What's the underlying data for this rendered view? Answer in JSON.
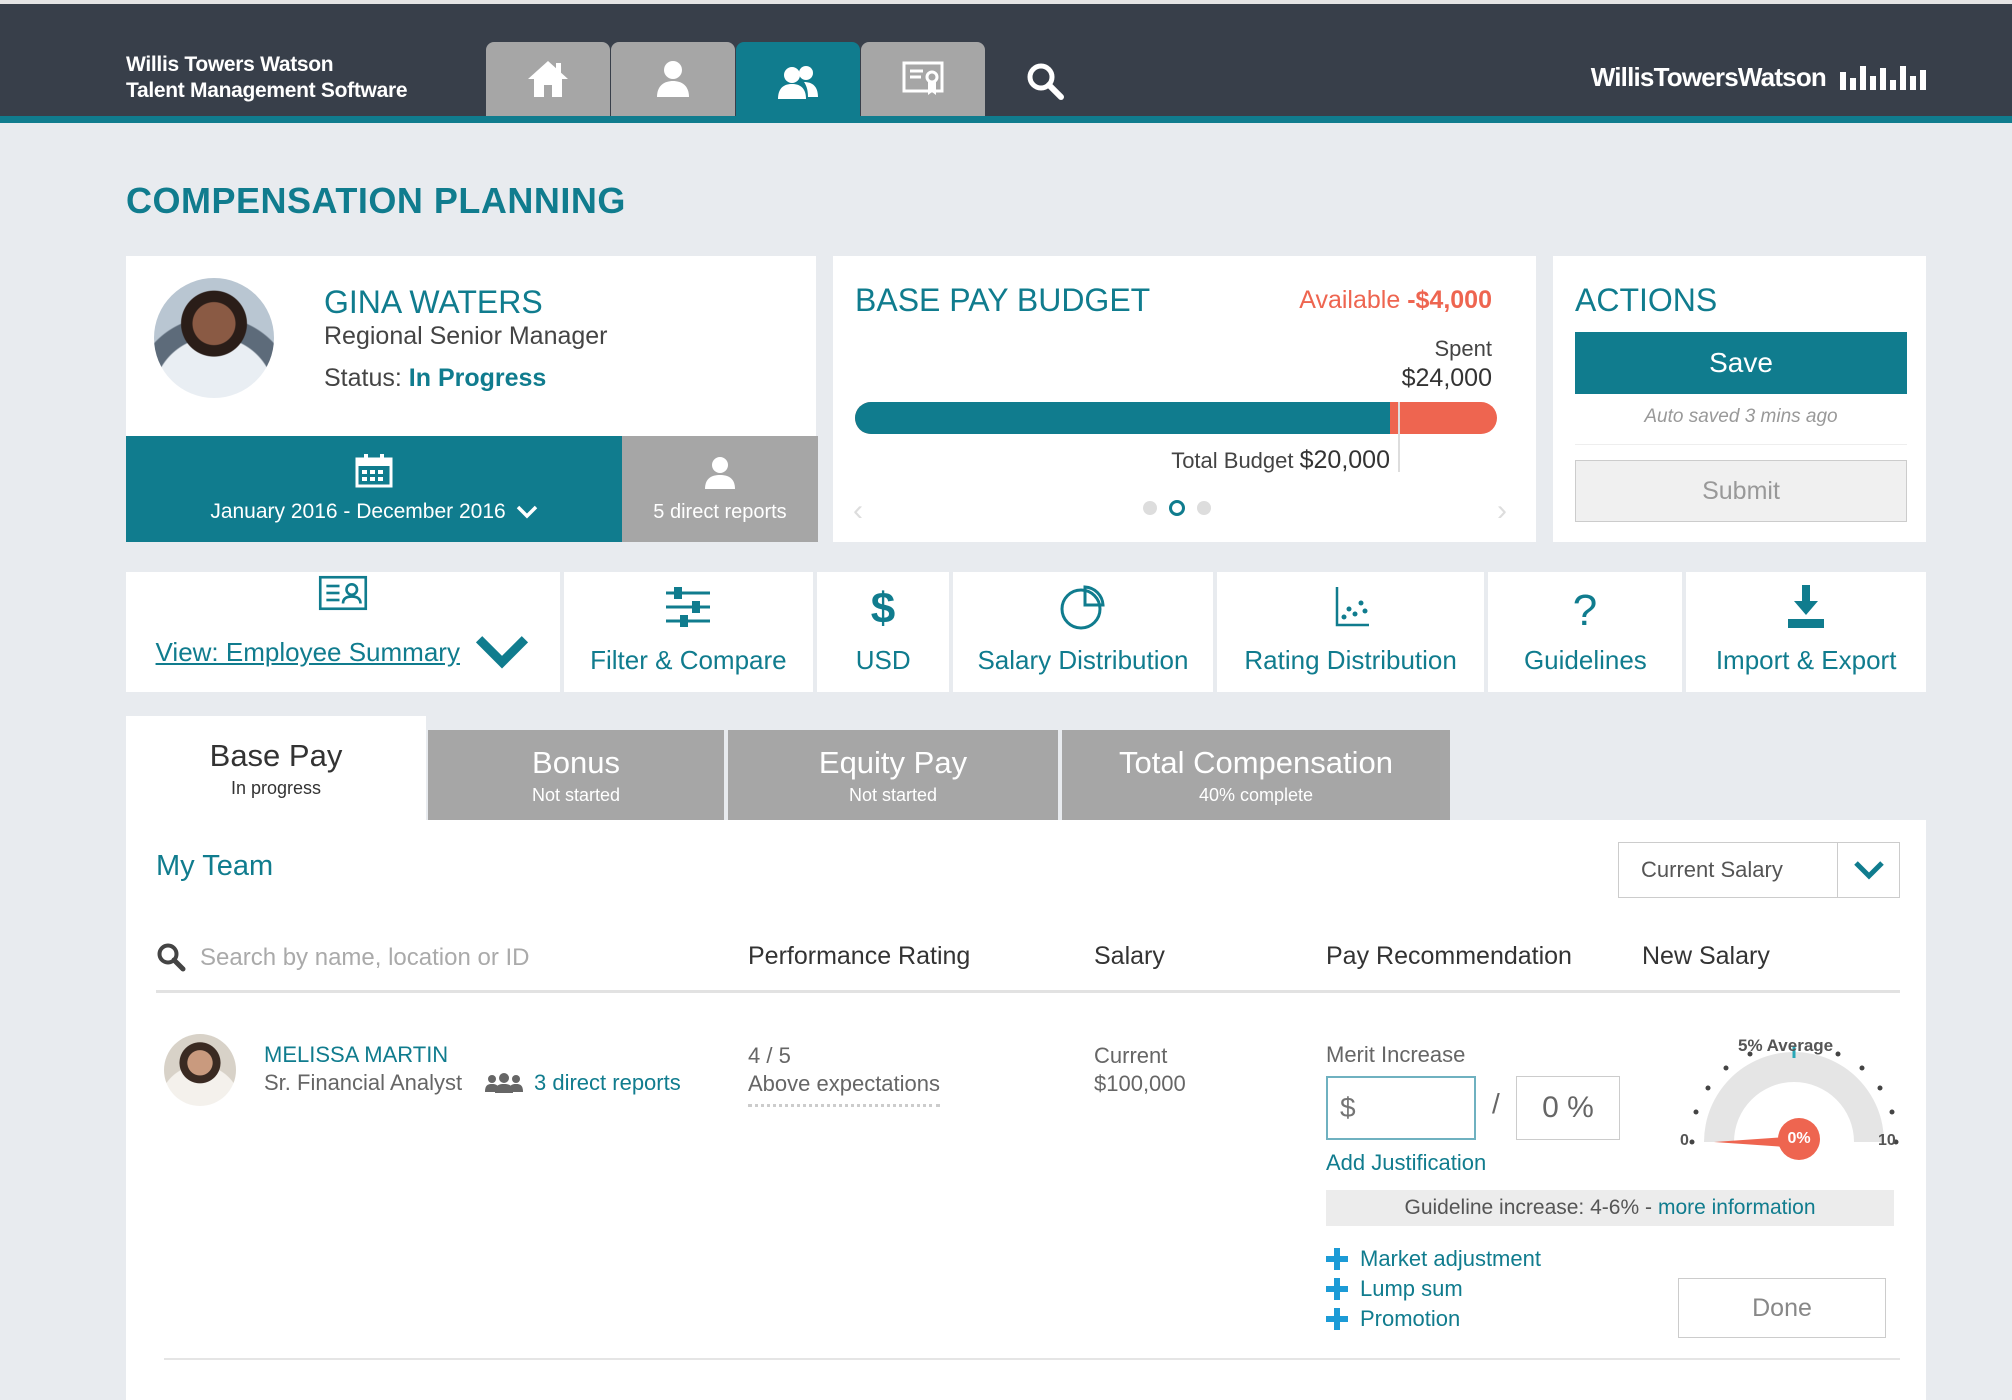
{
  "header": {
    "brand_line1": "Willis Towers Watson",
    "brand_line2": "Talent Management Software",
    "logo_text": "WillisTowersWatson",
    "nav": [
      {
        "icon": "home-icon"
      },
      {
        "icon": "user-icon"
      },
      {
        "icon": "team-icon",
        "active": true
      },
      {
        "icon": "certificate-icon"
      },
      {
        "icon": "search-icon"
      }
    ]
  },
  "page": {
    "title": "COMPENSATION PLANNING"
  },
  "profile": {
    "name": "GINA WATERS",
    "role": "Regional Senior Manager",
    "status_label": "Status:",
    "status_value": "In Progress",
    "period": "January 2016 - December 2016",
    "reports": "5 direct reports"
  },
  "budget": {
    "title": "BASE PAY BUDGET",
    "available_label": "Available",
    "available_value": "-$4,000",
    "spent_label": "Spent",
    "spent_value": "$24,000",
    "total_label": "Total Budget",
    "total_value": "$20,000",
    "fill_fraction": 0.833,
    "slides": 3,
    "active_slide": 2
  },
  "actions": {
    "title": "ACTIONS",
    "save": "Save",
    "autosave": "Auto saved 3 mins ago",
    "submit": "Submit"
  },
  "toolbar": {
    "view": "View: Employee Summary",
    "filter": "Filter & Compare",
    "currency": "USD",
    "salary_dist": "Salary Distribution",
    "rating_dist": "Rating Distribution",
    "guidelines": "Guidelines",
    "import_export": "Import & Export"
  },
  "tabs": [
    {
      "label": "Base Pay",
      "status": "In progress",
      "active": true
    },
    {
      "label": "Bonus",
      "status": "Not started"
    },
    {
      "label": "Equity Pay",
      "status": "Not started"
    },
    {
      "label": "Total Compensation",
      "status": "40% complete"
    }
  ],
  "team": {
    "title": "My Team",
    "dropdown_value": "Current Salary",
    "search_placeholder": "Search by name, location or ID",
    "columns": {
      "rating": "Performance Rating",
      "salary": "Salary",
      "recommendation": "Pay Recommendation",
      "new_salary": "New Salary"
    }
  },
  "employee": {
    "name": "MELISSA MARTIN",
    "title": "Sr. Financial Analyst",
    "reports": "3 direct reports",
    "rating": "4 / 5",
    "rating_desc": "Above expectations",
    "salary_label": "Current",
    "salary_value": "$100,000",
    "merit_label": "Merit Increase",
    "amount_prefix": "$",
    "percent_value": "0 %",
    "justification": "Add Justification",
    "guideline_text": "Guideline increase: 4-6% -",
    "guideline_link": "more information",
    "adjustments": [
      "Market adjustment",
      "Lump sum",
      "Promotion"
    ],
    "done": "Done",
    "gauge": {
      "label": "5% Average",
      "min": "0",
      "max": "10",
      "value": "0%"
    }
  },
  "colors": {
    "accent": "#107c8e",
    "warning": "#ee6550",
    "header": "#383f4a",
    "inactive": "#a6a6a6"
  }
}
